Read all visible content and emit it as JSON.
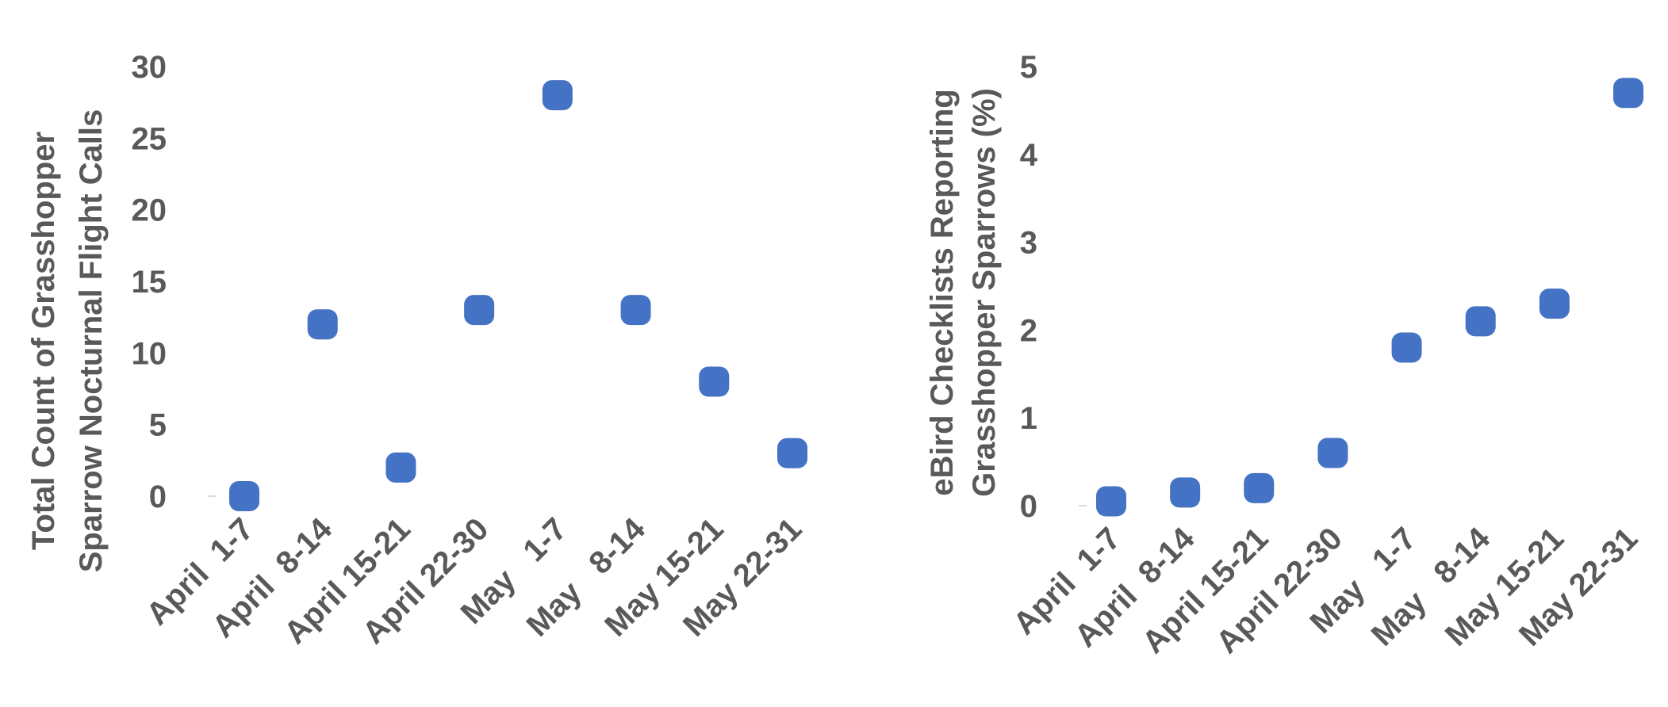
{
  "chart_data": [
    {
      "type": "scatter",
      "y_label": [
        "Total Count of Grasshopper",
        "Sparrow Nocturnal Flight Calls"
      ],
      "categories": [
        "April  1-7",
        "April  8-14",
        "April 15-21",
        "April 22-30",
        "May   1-7",
        "May   8-14",
        "May 15-21",
        "May 22-31"
      ],
      "values": [
        0,
        12,
        2,
        13,
        28,
        13,
        8,
        3
      ],
      "color": "#4472c4",
      "ylim": [
        0,
        30
      ],
      "yticks": [
        0,
        5,
        10,
        15,
        20,
        25,
        30
      ]
    },
    {
      "type": "scatter",
      "y_label": [
        "eBird Checklists Reporting",
        "Grasshopper Sparrows (%)"
      ],
      "categories": [
        "April  1-7",
        "April  8-14",
        "April 15-21",
        "April 22-30",
        "May   1-7",
        "May   8-14",
        "May 15-21",
        "May 22-31"
      ],
      "values": [
        0.05,
        0.15,
        0.2,
        0.6,
        1.8,
        2.1,
        2.3,
        4.7
      ],
      "color": "#4472c4",
      "ylim": [
        0,
        5
      ],
      "yticks": [
        0,
        1,
        2,
        3,
        4,
        5
      ]
    }
  ]
}
